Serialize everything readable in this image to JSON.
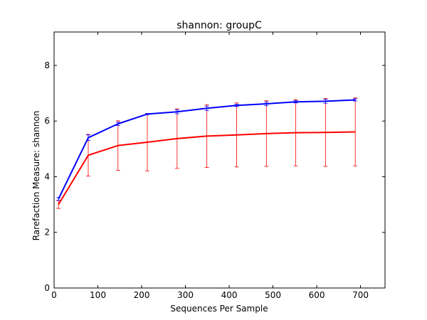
{
  "chart_data": {
    "type": "line",
    "title": "shannon: groupC",
    "xlabel": "Sequences Per Sample",
    "ylabel": "Rarefaction Measure: shannon",
    "xlim": [
      0,
      756
    ],
    "ylim": [
      0,
      9.2
    ],
    "xticks": [
      0,
      100,
      200,
      300,
      400,
      500,
      600,
      700
    ],
    "yticks": [
      0,
      2,
      4,
      6,
      8
    ],
    "grid": false,
    "legend": "none",
    "x": [
      10,
      78,
      146,
      213,
      281,
      349,
      417,
      485,
      552,
      620,
      688
    ],
    "series": [
      {
        "color": "#ff0000",
        "values": [
          3.0,
          4.77,
          5.12,
          5.24,
          5.37,
          5.46,
          5.5,
          5.55,
          5.58,
          5.59,
          5.61
        ],
        "error": [
          0.14,
          0.75,
          0.89,
          1.03,
          1.07,
          1.13,
          1.15,
          1.18,
          1.19,
          1.22,
          1.22
        ]
      },
      {
        "color": "#0000ff",
        "values": [
          3.2,
          5.4,
          5.9,
          6.25,
          6.33,
          6.46,
          6.56,
          6.62,
          6.69,
          6.71,
          6.76
        ],
        "error": [
          0.05,
          0.1,
          0.06,
          0.02,
          0.07,
          0.08,
          0.04,
          0.07,
          0.04,
          0.07,
          0.04
        ]
      }
    ]
  }
}
